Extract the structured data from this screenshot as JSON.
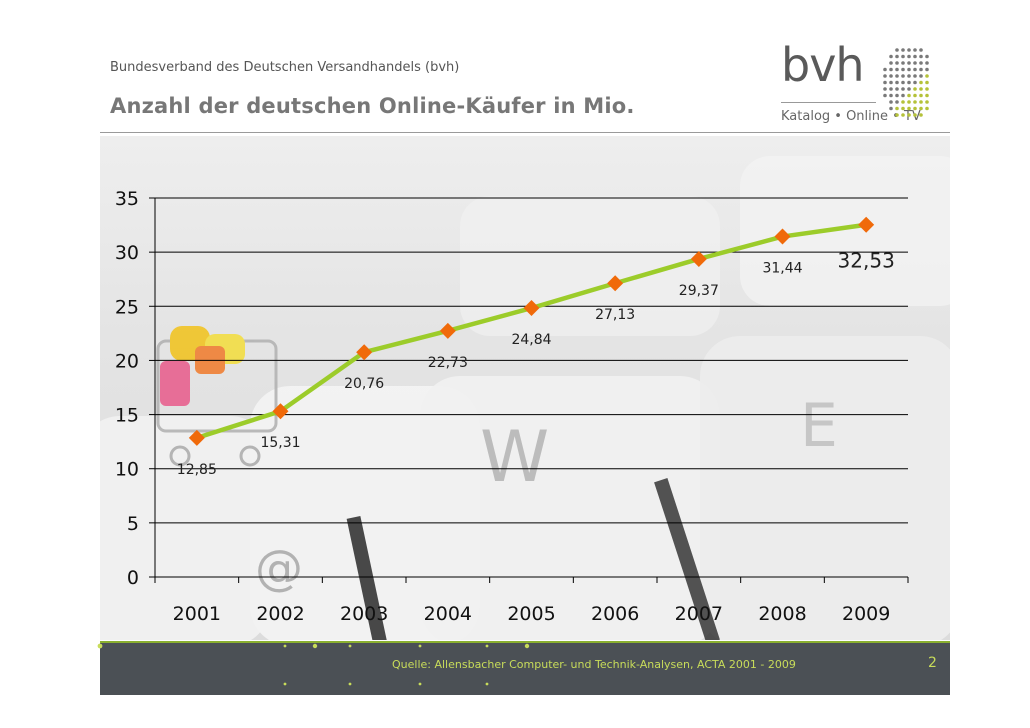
{
  "header": {
    "org": "Bundesverband des Deutschen Versandhandels (bvh)",
    "title": "Anzahl der deutschen Online-Käufer in Mio."
  },
  "logo": {
    "name": "bvh",
    "tagline": "Katalog • Online • TV"
  },
  "footer": {
    "source": "Quelle: Allensbacher Computer- und Technik-Analysen, ACTA 2001 - 2009",
    "page": "2"
  },
  "colors": {
    "line": "#9ccc2a",
    "marker": "#f06a0a",
    "footer_bg": "#4b5055",
    "footer_text": "#c8dc5a"
  },
  "chart_data": {
    "type": "line",
    "categories": [
      "2001",
      "2002",
      "2003",
      "2004",
      "2005",
      "2006",
      "2007",
      "2008",
      "2009"
    ],
    "values": [
      12.85,
      15.31,
      20.76,
      22.73,
      24.84,
      27.13,
      29.37,
      31.44,
      32.53
    ],
    "data_labels": [
      "12,85",
      "15,31",
      "20,76",
      "22,73",
      "24,84",
      "27,13",
      "29,37",
      "31,44",
      "32,53"
    ],
    "yticks": [
      "0",
      "5",
      "10",
      "15",
      "20",
      "25",
      "30",
      "35"
    ],
    "ylim": [
      0,
      35
    ],
    "grid": true,
    "legend": "none"
  }
}
